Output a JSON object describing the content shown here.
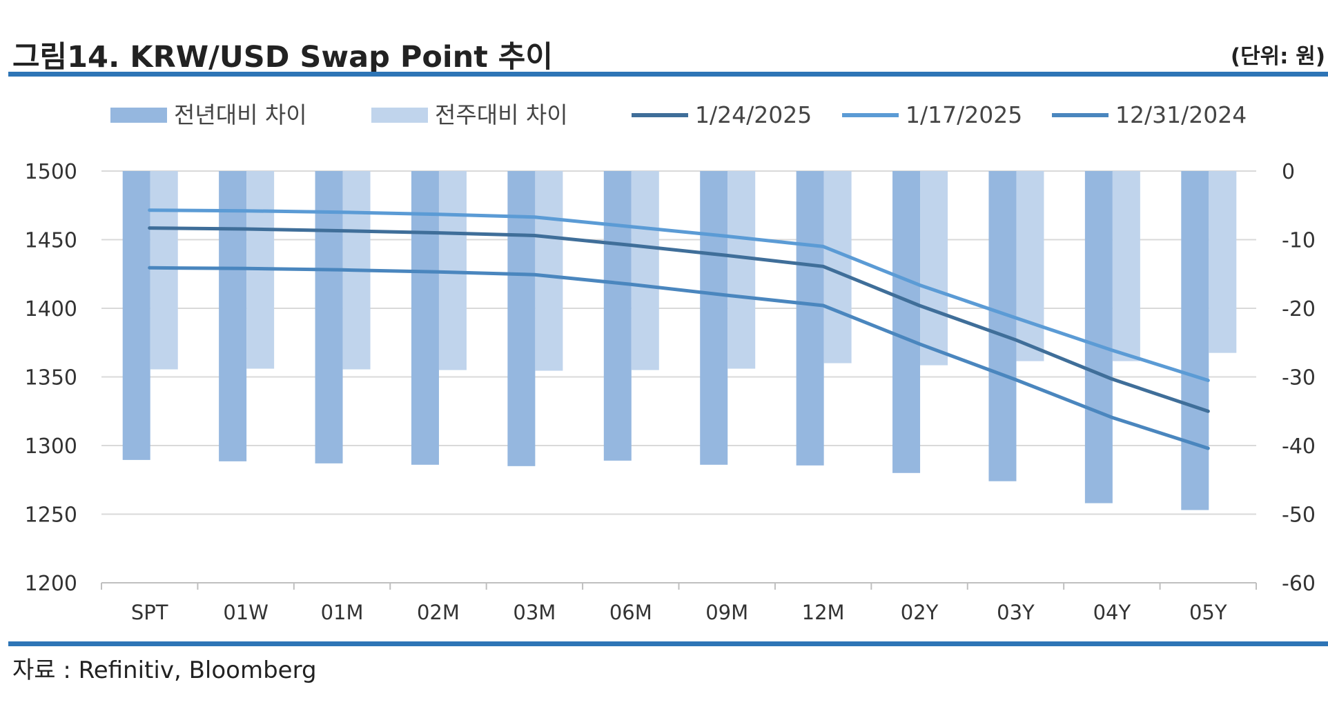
{
  "header": {
    "title": "그림14. KRW/USD Swap Point 추이",
    "unit": "(단위: 원)"
  },
  "footer": {
    "source": "자료 : Refinitiv, Bloomberg"
  },
  "colors": {
    "yoy_bar": "#95b7df",
    "wow_bar": "#c0d4ec",
    "line_0124": "#3f6e99",
    "line_0117": "#5b9bd5",
    "line_1231": "#4a86be",
    "accent_rule": "#2e75b6",
    "grid": "#d9d9d9"
  },
  "chart_data": {
    "type": "bar",
    "categories": [
      "SPT",
      "01W",
      "01M",
      "02M",
      "03M",
      "06M",
      "09M",
      "12M",
      "02Y",
      "03Y",
      "04Y",
      "05Y"
    ],
    "left_axis": {
      "ylim": [
        1200,
        1500
      ],
      "ticks": [
        "1500",
        "1450",
        "1400",
        "1350",
        "1300",
        "1250",
        "1200"
      ]
    },
    "right_axis": {
      "ylim": [
        -60,
        0
      ],
      "ticks": [
        "0",
        "-10",
        "-20",
        "-30",
        "-40",
        "-50",
        "-60"
      ]
    },
    "grid": true,
    "legend_position": "top",
    "bar_series": [
      {
        "name": "전년대비 차이",
        "axis": "right",
        "values": [
          -42.1,
          -42.3,
          -42.6,
          -42.8,
          -43.0,
          -42.2,
          -42.8,
          -42.9,
          -44.0,
          -45.2,
          -48.4,
          -49.4
        ]
      },
      {
        "name": "전주대비 차이",
        "axis": "right",
        "values": [
          -28.9,
          -28.8,
          -28.9,
          -29.0,
          -29.1,
          -29.0,
          -28.8,
          -28.0,
          -28.3,
          -27.7,
          -27.7,
          -26.5
        ]
      }
    ],
    "line_series": [
      {
        "name": "1/24/2025",
        "axis": "left",
        "values": [
          1458.5,
          1457.8,
          1456.5,
          1455.0,
          1453.0,
          1446.0,
          1438.5,
          1430.5,
          1402.0,
          1377.0,
          1348.5,
          1325.0
        ]
      },
      {
        "name": "1/17/2025",
        "axis": "left",
        "values": [
          1471.5,
          1471.0,
          1470.0,
          1468.5,
          1466.5,
          1459.5,
          1452.5,
          1445.0,
          1417.0,
          1393.0,
          1369.5,
          1347.5
        ]
      },
      {
        "name": "12/31/2024",
        "axis": "left",
        "values": [
          1429.5,
          1429.0,
          1428.0,
          1426.5,
          1424.5,
          1417.5,
          1409.5,
          1402.0,
          1374.0,
          1348.0,
          1320.5,
          1298.0
        ]
      }
    ]
  }
}
